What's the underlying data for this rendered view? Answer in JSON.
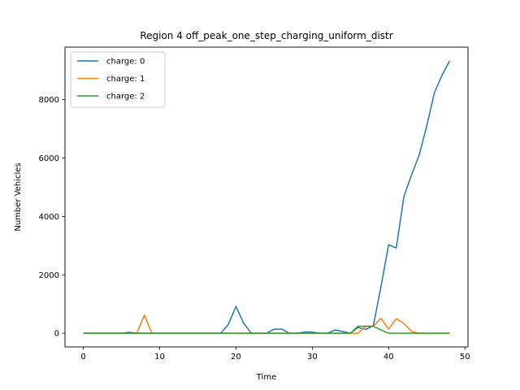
{
  "chart_data": {
    "type": "line",
    "title": "Region 4 off_peak_one_step_charging_uniform_distr",
    "xlabel": "Time",
    "ylabel": "Number Vehicles",
    "xlim": [
      -2.4,
      50.4
    ],
    "ylim": [
      -470,
      9800
    ],
    "xticks": [
      0,
      10,
      20,
      30,
      40,
      50
    ],
    "yticks": [
      0,
      2000,
      4000,
      6000,
      8000
    ],
    "grid": false,
    "legend_position": "top-left",
    "x": [
      0,
      1,
      2,
      3,
      4,
      5,
      6,
      7,
      8,
      9,
      10,
      11,
      12,
      13,
      14,
      15,
      16,
      17,
      18,
      19,
      20,
      21,
      22,
      23,
      24,
      25,
      26,
      27,
      28,
      29,
      30,
      31,
      32,
      33,
      34,
      35,
      36,
      37,
      38,
      39,
      40,
      41,
      42,
      43,
      44,
      45,
      46,
      47,
      48
    ],
    "series": [
      {
        "name": "charge: 0",
        "color": "#1f77b4",
        "values": [
          0,
          0,
          0,
          0,
          0,
          0,
          30,
          0,
          0,
          0,
          0,
          0,
          0,
          0,
          0,
          0,
          0,
          0,
          0,
          300,
          920,
          350,
          0,
          0,
          0,
          140,
          140,
          0,
          0,
          40,
          40,
          0,
          0,
          110,
          60,
          0,
          200,
          130,
          260,
          1600,
          3030,
          2920,
          4680,
          5420,
          6100,
          7110,
          8240,
          8840,
          9330
        ]
      },
      {
        "name": "charge: 1",
        "color": "#ff7f0e",
        "values": [
          0,
          0,
          0,
          0,
          0,
          0,
          0,
          0,
          620,
          0,
          0,
          0,
          0,
          0,
          0,
          0,
          0,
          0,
          0,
          0,
          0,
          0,
          0,
          0,
          0,
          0,
          0,
          0,
          0,
          0,
          0,
          0,
          0,
          0,
          0,
          0,
          0,
          240,
          240,
          510,
          140,
          500,
          340,
          60,
          0,
          0,
          0,
          0,
          0
        ]
      },
      {
        "name": "charge: 2",
        "color": "#2ca02c",
        "values": [
          0,
          0,
          0,
          0,
          0,
          0,
          0,
          0,
          0,
          0,
          0,
          0,
          0,
          0,
          0,
          0,
          0,
          0,
          0,
          0,
          0,
          0,
          0,
          0,
          0,
          0,
          0,
          0,
          0,
          0,
          0,
          0,
          0,
          0,
          0,
          0,
          240,
          240,
          240,
          110,
          0,
          0,
          0,
          0,
          0,
          0,
          0,
          0,
          0
        ]
      }
    ]
  }
}
